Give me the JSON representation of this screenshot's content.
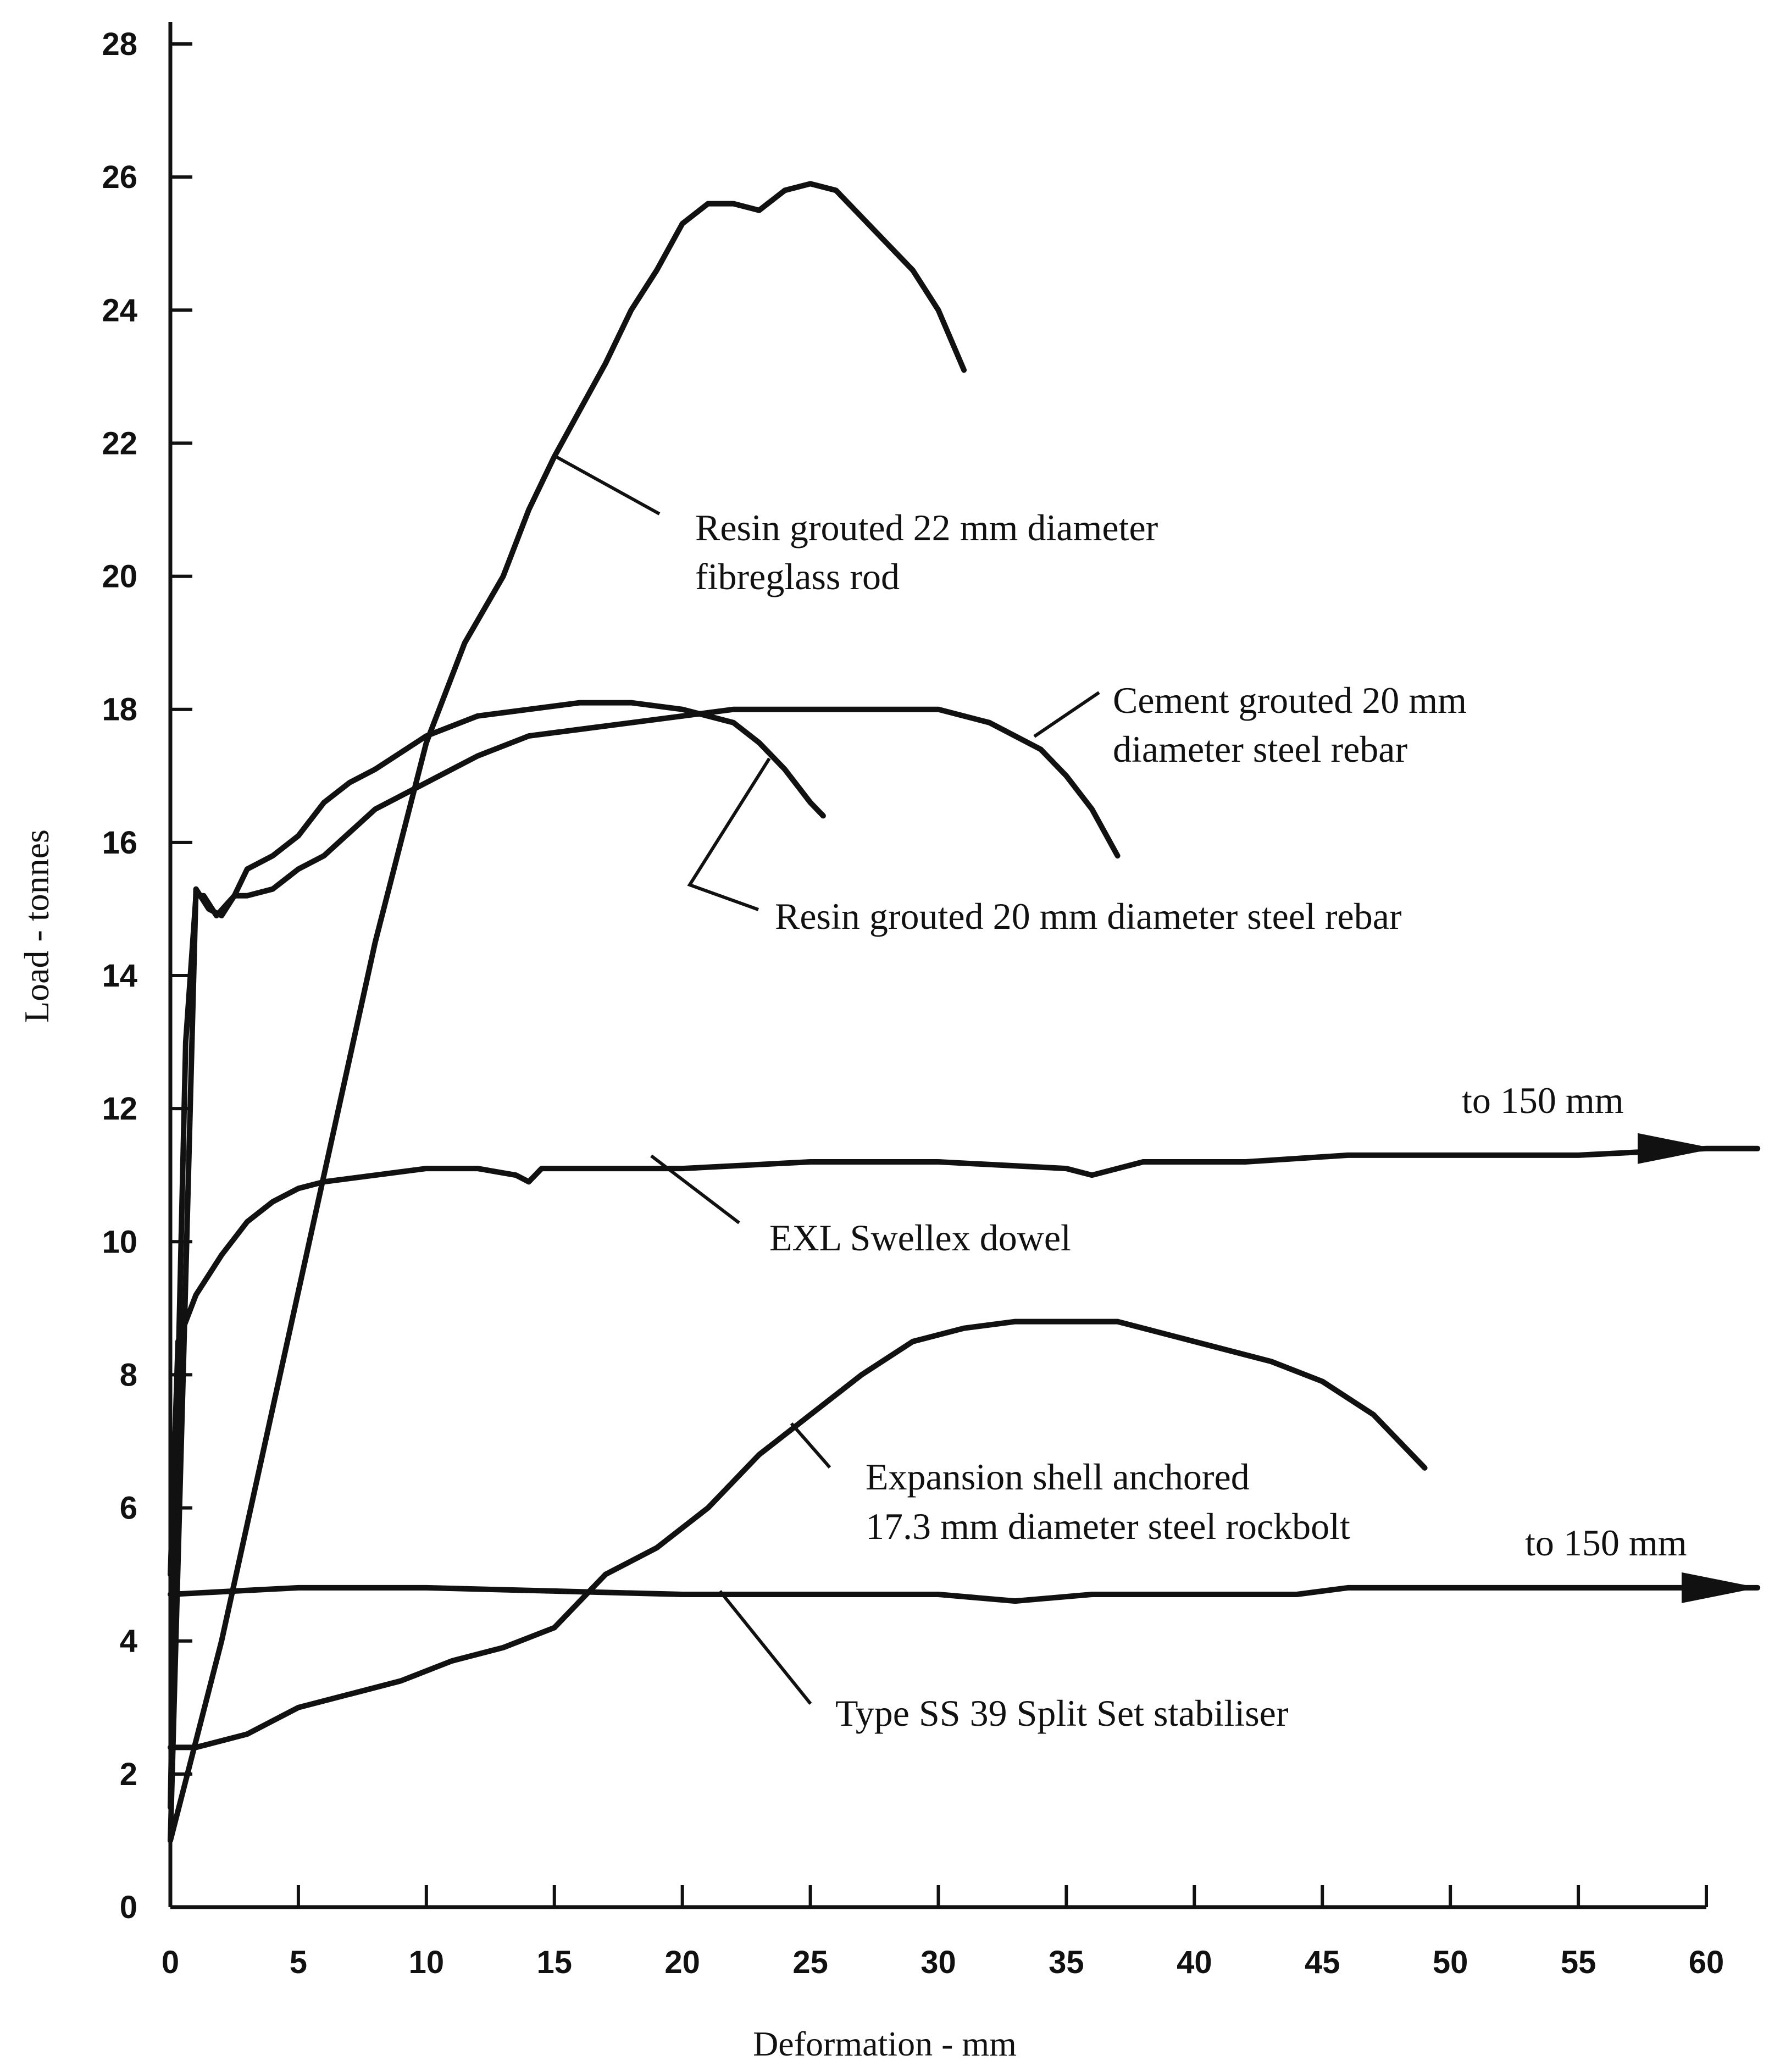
{
  "chart_data": {
    "type": "line",
    "xlabel": "Deformation - mm",
    "ylabel": "Load - tonnes",
    "xlim": [
      0,
      60
    ],
    "ylim": [
      0,
      28
    ],
    "xticks": [
      0,
      5,
      10,
      15,
      20,
      25,
      30,
      35,
      40,
      45,
      50,
      55,
      60
    ],
    "yticks": [
      0,
      2,
      4,
      6,
      8,
      10,
      12,
      14,
      16,
      18,
      20,
      22,
      24,
      26,
      28
    ],
    "series": [
      {
        "name": "Resin grouted 22 mm diameter fibreglass rod",
        "points": [
          [
            0,
            1
          ],
          [
            2,
            4
          ],
          [
            4,
            7.5
          ],
          [
            6,
            11
          ],
          [
            8,
            14.5
          ],
          [
            10,
            17.5
          ],
          [
            11.5,
            19
          ],
          [
            13,
            20
          ],
          [
            14,
            21
          ],
          [
            15,
            21.8
          ],
          [
            16,
            22.5
          ],
          [
            17,
            23.2
          ],
          [
            18,
            24
          ],
          [
            19,
            24.6
          ],
          [
            20,
            25.3
          ],
          [
            21,
            25.6
          ],
          [
            22,
            25.6
          ],
          [
            23,
            25.5
          ],
          [
            24,
            25.8
          ],
          [
            25,
            25.9
          ],
          [
            26,
            25.8
          ],
          [
            27,
            25.4
          ],
          [
            28,
            25
          ],
          [
            29,
            24.6
          ],
          [
            30,
            24
          ],
          [
            31,
            23.1
          ]
        ]
      },
      {
        "name": "Cement grouted 20 mm diameter steel rebar",
        "points": [
          [
            0,
            1.5
          ],
          [
            0.3,
            8
          ],
          [
            0.6,
            13
          ],
          [
            1,
            15.2
          ],
          [
            1.3,
            15.2
          ],
          [
            1.8,
            14.9
          ],
          [
            2.5,
            15.2
          ],
          [
            3,
            15.2
          ],
          [
            4,
            15.3
          ],
          [
            5,
            15.6
          ],
          [
            6,
            15.8
          ],
          [
            8,
            16.5
          ],
          [
            10,
            16.9
          ],
          [
            12,
            17.3
          ],
          [
            14,
            17.6
          ],
          [
            16,
            17.7
          ],
          [
            18,
            17.8
          ],
          [
            20,
            17.9
          ],
          [
            22,
            18
          ],
          [
            24,
            18
          ],
          [
            26,
            18
          ],
          [
            28,
            18
          ],
          [
            30,
            18
          ],
          [
            32,
            17.8
          ],
          [
            34,
            17.4
          ],
          [
            35,
            17
          ],
          [
            36,
            16.5
          ],
          [
            37,
            15.8
          ]
        ]
      },
      {
        "name": "Resin grouted 20 mm diameter steel rebar",
        "points": [
          [
            0,
            1
          ],
          [
            0.5,
            8
          ],
          [
            1,
            15.3
          ],
          [
            1.5,
            15
          ],
          [
            2,
            14.9
          ],
          [
            2.5,
            15.2
          ],
          [
            3,
            15.6
          ],
          [
            4,
            15.8
          ],
          [
            5,
            16.1
          ],
          [
            6,
            16.6
          ],
          [
            7,
            16.9
          ],
          [
            8,
            17.1
          ],
          [
            10,
            17.6
          ],
          [
            12,
            17.9
          ],
          [
            14,
            18
          ],
          [
            16,
            18.1
          ],
          [
            18,
            18.1
          ],
          [
            20,
            18
          ],
          [
            22,
            17.8
          ],
          [
            23,
            17.5
          ],
          [
            24,
            17.1
          ],
          [
            25,
            16.6
          ],
          [
            25.5,
            16.4
          ]
        ]
      },
      {
        "name": "EXL Swellex dowel",
        "points": [
          [
            0,
            5
          ],
          [
            0.3,
            8.5
          ],
          [
            1,
            9.2
          ],
          [
            2,
            9.8
          ],
          [
            3,
            10.3
          ],
          [
            4,
            10.6
          ],
          [
            5,
            10.8
          ],
          [
            6,
            10.9
          ],
          [
            8,
            11
          ],
          [
            10,
            11.1
          ],
          [
            12,
            11.1
          ],
          [
            13.5,
            11
          ],
          [
            14,
            10.9
          ],
          [
            14.5,
            11.1
          ],
          [
            16,
            11.1
          ],
          [
            20,
            11.1
          ],
          [
            25,
            11.2
          ],
          [
            30,
            11.2
          ],
          [
            35,
            11.1
          ],
          [
            36,
            11
          ],
          [
            38,
            11.2
          ],
          [
            42,
            11.2
          ],
          [
            46,
            11.3
          ],
          [
            50,
            11.3
          ],
          [
            55,
            11.3
          ],
          [
            60,
            11.4
          ],
          [
            62,
            11.4
          ]
        ]
      },
      {
        "name": "Expansion shell anchored 17.3 mm diameter steel rockbolt",
        "points": [
          [
            0,
            2.4
          ],
          [
            1,
            2.4
          ],
          [
            3,
            2.6
          ],
          [
            5,
            3
          ],
          [
            7,
            3.2
          ],
          [
            9,
            3.4
          ],
          [
            11,
            3.7
          ],
          [
            13,
            3.9
          ],
          [
            15,
            4.2
          ],
          [
            17,
            5
          ],
          [
            19,
            5.4
          ],
          [
            21,
            6
          ],
          [
            23,
            6.8
          ],
          [
            25,
            7.4
          ],
          [
            27,
            8
          ],
          [
            29,
            8.5
          ],
          [
            31,
            8.7
          ],
          [
            33,
            8.8
          ],
          [
            35,
            8.8
          ],
          [
            37,
            8.8
          ],
          [
            39,
            8.6
          ],
          [
            41,
            8.4
          ],
          [
            43,
            8.2
          ],
          [
            45,
            7.9
          ],
          [
            47,
            7.4
          ],
          [
            49,
            6.6
          ]
        ]
      },
      {
        "name": "Type SS 39 Split Set stabiliser",
        "points": [
          [
            0,
            4.7
          ],
          [
            5,
            4.8
          ],
          [
            10,
            4.8
          ],
          [
            20,
            4.7
          ],
          [
            30,
            4.7
          ],
          [
            33,
            4.6
          ],
          [
            36,
            4.7
          ],
          [
            40,
            4.7
          ],
          [
            44,
            4.7
          ],
          [
            46,
            4.8
          ],
          [
            50,
            4.8
          ],
          [
            55,
            4.8
          ],
          [
            60,
            4.8
          ],
          [
            62,
            4.8
          ]
        ]
      }
    ],
    "annotations": [
      {
        "lines": [
          "Resin grouted 22 mm diameter",
          "fibreglass rod"
        ]
      },
      {
        "lines": [
          "Cement grouted 20 mm",
          "diameter steel rebar"
        ]
      },
      {
        "lines": [
          "Resin grouted 20 mm diameter steel rebar"
        ]
      },
      {
        "lines": [
          "to 150 mm"
        ]
      },
      {
        "lines": [
          "EXL Swellex dowel"
        ]
      },
      {
        "lines": [
          "Expansion shell anchored",
          "17.3 mm diameter steel rockbolt"
        ]
      },
      {
        "lines": [
          "to 150 mm"
        ]
      },
      {
        "lines": [
          "Type SS 39 Split Set stabiliser"
        ]
      }
    ]
  }
}
